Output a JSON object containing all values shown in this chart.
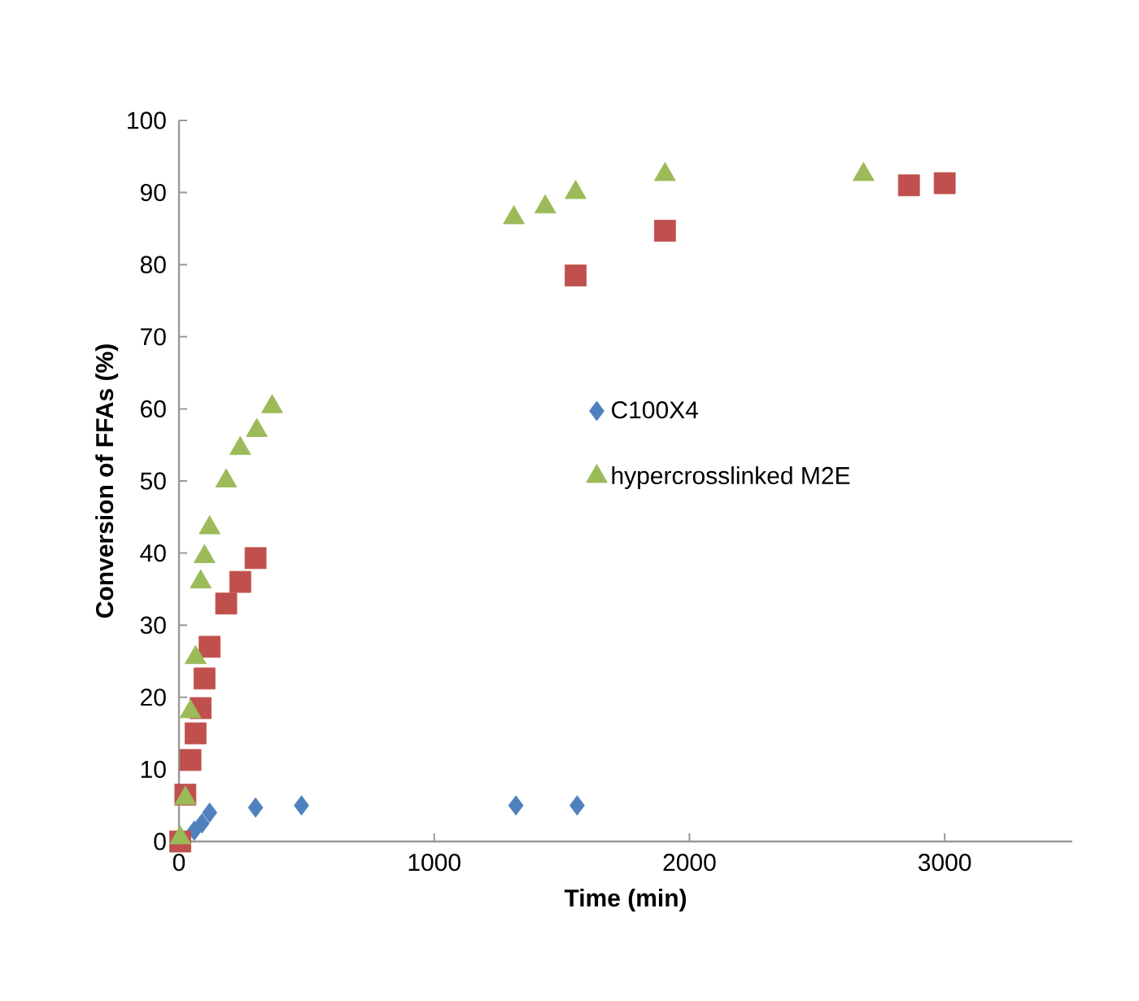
{
  "chart_data": {
    "type": "scatter",
    "xlabel": "Time (min)",
    "ylabel": "Conversion of FFAs (%)",
    "xlim": [
      0,
      3500
    ],
    "xticks": [
      0,
      1000,
      2000,
      3000
    ],
    "ylim": [
      0,
      100
    ],
    "yticks": [
      0,
      10,
      20,
      30,
      40,
      50,
      60,
      70,
      80,
      90,
      100
    ],
    "grid": false,
    "legend": "right",
    "series": [
      {
        "name": "C100X4",
        "color": "#4f81bd",
        "marker": "diamond",
        "x": [
          60,
          90,
          120,
          300,
          480,
          1320,
          1560
        ],
        "values": [
          1.5,
          2.5,
          4,
          4.7,
          5,
          5,
          5
        ]
      },
      {
        "color": "#c0504d",
        "marker": "square",
        "x": [
          5,
          25,
          45,
          65,
          85,
          100,
          120,
          185,
          240,
          300,
          1554,
          1904,
          2860,
          3000
        ],
        "values": [
          0,
          6.5,
          11.3,
          15,
          18.5,
          22.6,
          27,
          33,
          36,
          39.3,
          78.5,
          84.7,
          91,
          91.3
        ]
      },
      {
        "name": "hypercrosslinked M2E",
        "color": "#9bbb59",
        "marker": "triangle",
        "x": [
          5,
          25,
          45,
          65,
          85,
          100,
          120,
          185,
          240,
          305,
          365,
          1312,
          1435,
          1554,
          1904,
          2682
        ],
        "values": [
          0.5,
          6,
          18,
          25.5,
          36,
          39.5,
          43.5,
          50,
          54.5,
          57,
          60.3,
          86.5,
          88,
          90,
          92.5,
          92.5
        ]
      }
    ]
  }
}
